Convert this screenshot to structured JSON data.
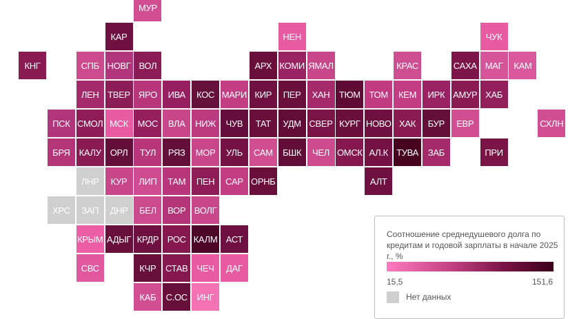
{
  "colors": {
    "no_data": "#cfcfcf",
    "scale_min": "#ff7ac0",
    "scale_max": "#3a0018"
  },
  "regions": [
    {
      "label": "МУР",
      "fill": "#d24e93"
    },
    {
      "label": "КАР",
      "fill": "#6e1040"
    },
    {
      "label": "НЕН",
      "fill": "#e85aa2"
    },
    {
      "label": "ЧУК",
      "fill": "#e85aa2"
    },
    {
      "label": "КНГ",
      "fill": "#8a1a52"
    },
    {
      "label": "СПБ",
      "fill": "#cc4a8e"
    },
    {
      "label": "НОВГ",
      "fill": "#b0357a"
    },
    {
      "label": "ВОЛ",
      "fill": "#8c1c55"
    },
    {
      "label": "АРХ",
      "fill": "#6a0f3c"
    },
    {
      "label": "КОМИ",
      "fill": "#9a2262"
    },
    {
      "label": "ЯМАЛ",
      "fill": "#c8468a"
    },
    {
      "label": "КРАС",
      "fill": "#ce4e92"
    },
    {
      "label": "САХА",
      "fill": "#7e1548"
    },
    {
      "label": "МАГ",
      "fill": "#d6549a"
    },
    {
      "label": "КАМ",
      "fill": "#da589c"
    },
    {
      "label": "ЛЕН",
      "fill": "#a42a6c"
    },
    {
      "label": "ТВЕР",
      "fill": "#8c1c55"
    },
    {
      "label": "ЯРО",
      "fill": "#b8377c"
    },
    {
      "label": "ИВА",
      "fill": "#982060"
    },
    {
      "label": "КОС",
      "fill": "#64103a"
    },
    {
      "label": "МАРИ",
      "fill": "#c43c84"
    },
    {
      "label": "КИР",
      "fill": "#6e1040"
    },
    {
      "label": "ПЕР",
      "fill": "#6a0f3c"
    },
    {
      "label": "ХАН",
      "fill": "#a42a6c"
    },
    {
      "label": "ТЮМ",
      "fill": "#5e0c36"
    },
    {
      "label": "ТОМ",
      "fill": "#c23a82"
    },
    {
      "label": "КЕМ",
      "fill": "#c43c84"
    },
    {
      "label": "ИРК",
      "fill": "#9a2262"
    },
    {
      "label": "АМУР",
      "fill": "#8a1a52"
    },
    {
      "label": "ХАБ",
      "fill": "#921e5a"
    },
    {
      "label": "ПСК",
      "fill": "#b0357a"
    },
    {
      "label": "СМОЛ",
      "fill": "#8e1c56"
    },
    {
      "label": "МСК",
      "fill": "#e85aa2"
    },
    {
      "label": "МОС",
      "fill": "#941f5c"
    },
    {
      "label": "ВЛА",
      "fill": "#c8468a"
    },
    {
      "label": "НИЖ",
      "fill": "#bc3a80"
    },
    {
      "label": "ЧУВ",
      "fill": "#660e3b"
    },
    {
      "label": "ТАТ",
      "fill": "#6a0f3c"
    },
    {
      "label": "УДМ",
      "fill": "#620d38"
    },
    {
      "label": "СВЕР",
      "fill": "#7a1446"
    },
    {
      "label": "КУРГ",
      "fill": "#6a0f3c"
    },
    {
      "label": "НОВО",
      "fill": "#6e1040"
    },
    {
      "label": "ХАК",
      "fill": "#8a1a52"
    },
    {
      "label": "БУР",
      "fill": "#640e3a"
    },
    {
      "label": "ЕВР",
      "fill": "#d24e93"
    },
    {
      "label": "СХЛН",
      "fill": "#d24e93"
    },
    {
      "label": "БРЯ",
      "fill": "#b43679"
    },
    {
      "label": "КАЛУ",
      "fill": "#8a1a52"
    },
    {
      "label": "ОРЛ",
      "fill": "#640e3a"
    },
    {
      "label": "ТУЛ",
      "fill": "#b8377c"
    },
    {
      "label": "РЯЗ",
      "fill": "#640e3a"
    },
    {
      "label": "МОР",
      "fill": "#c8468a"
    },
    {
      "label": "УЛЬ",
      "fill": "#741244"
    },
    {
      "label": "САМ",
      "fill": "#d24e93"
    },
    {
      "label": "БШК",
      "fill": "#620d38"
    },
    {
      "label": "ЧЕЛ",
      "fill": "#cc4a8e"
    },
    {
      "label": "ОМСК",
      "fill": "#861850"
    },
    {
      "label": "АЛ.К",
      "fill": "#741244"
    },
    {
      "label": "ТУВА",
      "fill": "#46041f"
    },
    {
      "label": "ЗАБ",
      "fill": "#a42a6c"
    },
    {
      "label": "ПРИ",
      "fill": "#7a1446"
    },
    {
      "label": "ЛНР",
      "fill": "#cfcfcf"
    },
    {
      "label": "КУР",
      "fill": "#c8468a"
    },
    {
      "label": "ЛИП",
      "fill": "#d04c92"
    },
    {
      "label": "ТАМ",
      "fill": "#b8377c"
    },
    {
      "label": "ПЕН",
      "fill": "#8e1c56"
    },
    {
      "label": "САР",
      "fill": "#c43c84"
    },
    {
      "label": "ОРНБ",
      "fill": "#6a0f3c"
    },
    {
      "label": "АЛТ",
      "fill": "#6e1040"
    },
    {
      "label": "ХРС",
      "fill": "#cfcfcf"
    },
    {
      "label": "ЗАП",
      "fill": "#cfcfcf"
    },
    {
      "label": "ДНР",
      "fill": "#cfcfcf"
    },
    {
      "label": "БЕЛ",
      "fill": "#cc4a8e"
    },
    {
      "label": "ВОР",
      "fill": "#b4357a"
    },
    {
      "label": "ВОЛГ",
      "fill": "#c8468a"
    },
    {
      "label": "КРЫМ",
      "fill": "#ec5ea6"
    },
    {
      "label": "АДЫГ",
      "fill": "#680f3c"
    },
    {
      "label": "КРДР",
      "fill": "#6e1040"
    },
    {
      "label": "РОС",
      "fill": "#861850"
    },
    {
      "label": "КАЛМ",
      "fill": "#4e0628"
    },
    {
      "label": "АСТ",
      "fill": "#6e1040"
    },
    {
      "label": "СВС",
      "fill": "#e258a0"
    },
    {
      "label": "КЧР",
      "fill": "#680f3c"
    },
    {
      "label": "СТАВ",
      "fill": "#861850"
    },
    {
      "label": "ЧЕЧ",
      "fill": "#e85aa2"
    },
    {
      "label": "ДАГ",
      "fill": "#e85aa2"
    },
    {
      "label": "КАБ",
      "fill": "#d24e93"
    },
    {
      "label": "С.ОС",
      "fill": "#680f3c"
    },
    {
      "label": "ИНГ",
      "fill": "#f272b4"
    }
  ],
  "legend": {
    "title": "Соотношение среднедушевого долга по кредитам и годовой зарплаты в начале 2025 г., %",
    "min": "15,5",
    "max": "151,6",
    "no_data": "Нет данных"
  }
}
